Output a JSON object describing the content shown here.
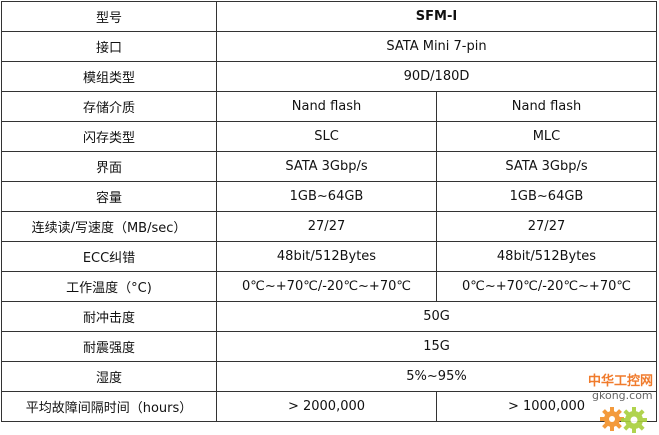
{
  "rows": [
    {
      "label": "型号",
      "value": "SFM-I"
    },
    {
      "label": "接口",
      "value": "SATA Mini 7-pin"
    },
    {
      "label": "模组类型",
      "value": "90D/180D"
    },
    {
      "label": "存储介质",
      "a": "Nand flash",
      "b": "Nand flash"
    },
    {
      "label": "闪存类型",
      "a": "SLC",
      "b": "MLC"
    },
    {
      "label": "界面",
      "a": "SATA 3Gbp/s",
      "b": "SATA 3Gbp/s"
    },
    {
      "label": "容量",
      "a": "1GB~64GB",
      "b": "1GB~64GB"
    },
    {
      "label": "连续读/写速度（MB/sec）",
      "a": "27/27",
      "b": "27/27"
    },
    {
      "label": "ECC纠错",
      "a": "48bit/512Bytes",
      "b": "48bit/512Bytes"
    },
    {
      "label": "工作温度（°C)",
      "a": "0℃~+70℃/-20℃~+70℃",
      "b": "0℃~+70℃/-20℃~+70℃"
    },
    {
      "label": "耐冲击度",
      "value": "50G"
    },
    {
      "label": "耐震强度",
      "value": "15G"
    },
    {
      "label": "湿度",
      "value": "5%~95%"
    },
    {
      "label": "平均故障间隔时间（hours）",
      "a": "> 2000,000",
      "b": "> 1000,000"
    }
  ],
  "watermark": {
    "title": "中华工控网",
    "url": "gkong.com",
    "colors": [
      "#f07b2c",
      "#a8cf3b"
    ]
  }
}
